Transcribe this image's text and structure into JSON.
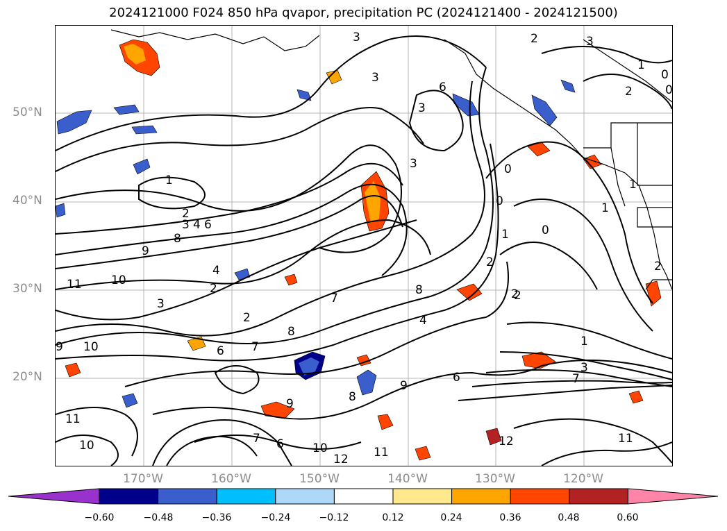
{
  "title": "2024121000 F024 850 hPa qvapor, precipitation PC (2024121400 - 2024121500)",
  "lat_labels": [
    "50°N",
    "40°N",
    "30°N",
    "20°N"
  ],
  "lon_labels": [
    "170°W",
    "160°W",
    "150°W",
    "140°W",
    "130°W",
    "120°W"
  ],
  "colorbar": {
    "ticks": [
      "−0.60",
      "−0.48",
      "−0.36",
      "−0.24",
      "−0.12",
      "0.12",
      "0.24",
      "0.36",
      "0.48",
      "0.60"
    ],
    "colors": [
      "#9932cc",
      "#00008b",
      "#3a5fcd",
      "#00bfff",
      "#add8f7",
      "#ffffff",
      "#ffe98c",
      "#ffa500",
      "#ff4500",
      "#b22222",
      "#ff85a8"
    ]
  },
  "contour_labels": [
    "3",
    "3",
    "2",
    "3",
    "1",
    "0",
    "2",
    "0",
    "3",
    "6",
    "3",
    "1",
    "2",
    "3",
    "4",
    "6",
    "9",
    "8",
    "10",
    "11",
    "4",
    "2",
    "3",
    "2",
    "7",
    "8",
    "4",
    "2",
    "1",
    "2",
    "1",
    "3",
    "7",
    "6",
    "10",
    "9",
    "6",
    "8",
    "7",
    "9",
    "12",
    "11",
    "10",
    "11",
    "12",
    "11",
    "9",
    "10",
    "7",
    "6",
    "8",
    "0",
    "0",
    "0",
    "1",
    "1",
    "2",
    "2"
  ]
}
